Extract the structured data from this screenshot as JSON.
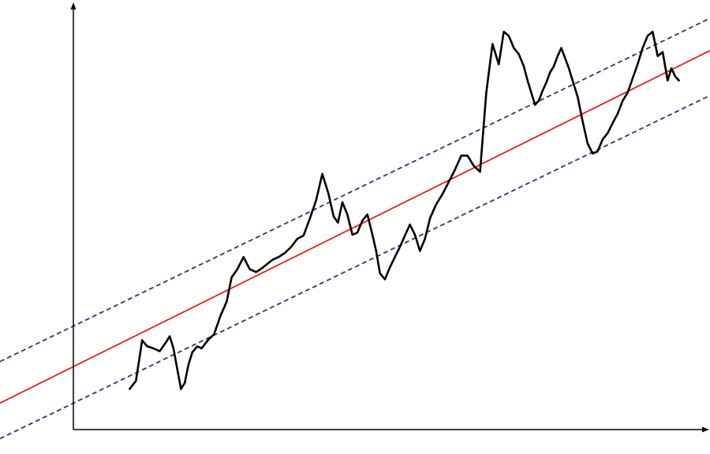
{
  "chart_data": {
    "type": "line",
    "title": "",
    "xlabel": "",
    "ylabel": "",
    "grid": false,
    "legend": "none",
    "xlim": [
      0,
      100
    ],
    "ylim": [
      0,
      100
    ],
    "series": [
      {
        "role": "price",
        "color": "#000000",
        "style": "solid",
        "x": [
          9.0,
          10.0,
          10.5,
          11.0,
          11.8,
          12.8,
          13.8,
          14.8,
          15.4,
          16.0,
          16.6,
          17.2,
          17.8,
          18.4,
          19.0,
          19.8,
          20.5,
          21.5,
          22.5,
          23.5,
          24.5,
          25.3,
          26.2,
          27.2,
          28.2,
          29.2,
          30.2,
          31.0,
          31.8,
          32.8,
          33.8,
          34.8,
          35.8,
          36.8,
          37.8,
          38.8,
          39.8,
          40.8,
          41.6,
          42.3,
          43.0,
          43.8,
          44.6,
          45.4,
          46.2,
          47.0,
          47.8,
          48.4,
          49.0,
          49.8,
          50.6,
          51.4,
          52.2,
          53.0,
          53.8,
          54.6,
          55.4,
          56.2,
          57.0,
          58.0,
          59.0,
          60.0,
          61.0,
          62.0,
          63.0,
          64.0,
          65.0,
          66.0,
          67.0,
          68.0,
          68.8,
          69.6,
          70.4,
          71.2,
          72.0,
          72.6,
          73.2,
          73.8,
          74.4,
          75.0,
          75.6,
          76.2,
          76.8,
          77.4,
          78.0,
          78.6,
          79.2,
          79.8,
          80.6,
          81.4,
          82.2,
          83.0,
          83.8,
          84.6,
          85.4,
          86.2,
          87.0,
          87.8,
          88.6,
          89.4,
          90.2,
          91.0,
          91.8,
          92.6,
          93.4,
          94.2,
          95.0,
          95.6,
          96.2,
          96.8
        ],
        "y": [
          10.0,
          12.0,
          17.0,
          22.0,
          20.5,
          20.0,
          19.3,
          21.5,
          23.0,
          20.0,
          15.0,
          10.0,
          11.5,
          16.0,
          19.0,
          20.5,
          20.0,
          22.0,
          23.5,
          28.0,
          31.5,
          37.5,
          39.5,
          42.5,
          39.5,
          38.8,
          39.8,
          40.8,
          41.8,
          42.5,
          43.5,
          45.0,
          47.0,
          47.8,
          52.0,
          56.5,
          63.0,
          58.0,
          52.5,
          51.0,
          56.0,
          53.0,
          48.0,
          48.5,
          51.5,
          53.0,
          48.0,
          44.0,
          38.5,
          37.0,
          40.0,
          42.5,
          45.0,
          47.8,
          50.5,
          48.0,
          44.0,
          47.0,
          52.0,
          55.5,
          58.0,
          61.0,
          64.0,
          67.5,
          67.5,
          65.0,
          63.5,
          83.0,
          95.0,
          90.0,
          98.0,
          97.0,
          94.0,
          92.5,
          89.5,
          86.0,
          83.0,
          80.0,
          81.0,
          83.5,
          85.5,
          88.0,
          89.5,
          92.0,
          94.0,
          91.5,
          89.0,
          86.0,
          82.0,
          76.0,
          70.5,
          68.0,
          68.5,
          71.5,
          73.0,
          75.5,
          77.8,
          81.0,
          83.0,
          86.5,
          90.0,
          94.0,
          97.0,
          98.0,
          92.0,
          93.0,
          86.0,
          89.0,
          87.0,
          86.0
        ]
      },
      {
        "role": "trend",
        "color": "#e02020",
        "style": "solid",
        "x": [
          0,
          100
        ],
        "y": [
          15.5,
          92.0
        ]
      },
      {
        "role": "upper-channel",
        "color": "#1f3a7a",
        "style": "dashed",
        "x": [
          0,
          100
        ],
        "y": [
          25.5,
          100.0
        ]
      },
      {
        "role": "lower-channel",
        "color": "#1f3a7a",
        "style": "dashed",
        "x": [
          0,
          100
        ],
        "y": [
          6.5,
          81.0
        ]
      }
    ]
  }
}
